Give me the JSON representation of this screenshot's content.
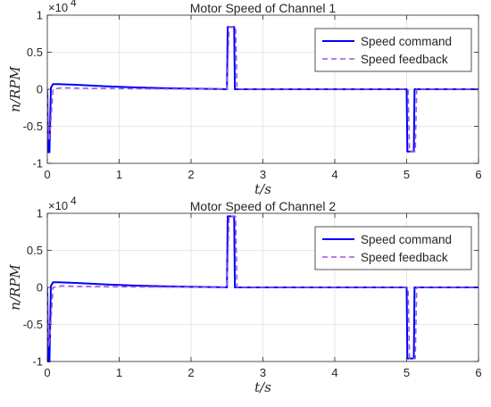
{
  "chart_data": [
    {
      "type": "line",
      "title": "Motor Speed of Channel 1",
      "xlabel": "t/s",
      "ylabel": "n/RPM",
      "xlim": [
        0,
        6
      ],
      "ylim": [
        -1,
        1
      ],
      "y_multiplier": "×10",
      "y_exponent": "4",
      "xticks": [
        0,
        1,
        2,
        3,
        4,
        5,
        6
      ],
      "xtick_labels": [
        "0",
        "1",
        "2",
        "3",
        "4",
        "5",
        "6"
      ],
      "yticks": [
        -1,
        -0.5,
        0,
        0.5,
        1
      ],
      "ytick_labels": [
        "-1",
        "-0.5",
        "0",
        "0.5",
        "1"
      ],
      "grid": true,
      "legend_position": "top-right",
      "series": [
        {
          "name": "Speed command",
          "color": "#0000ff",
          "style": "solid",
          "points": [
            [
              0,
              0
            ],
            [
              0.01,
              -0.85
            ],
            [
              0.03,
              -0.85
            ],
            [
              0.05,
              0.02
            ],
            [
              0.08,
              0.07
            ],
            [
              0.15,
              0.07
            ],
            [
              0.4,
              0.06
            ],
            [
              0.8,
              0.04
            ],
            [
              1.2,
              0.025
            ],
            [
              1.6,
              0.015
            ],
            [
              2.0,
              0.008
            ],
            [
              2.4,
              0.003
            ],
            [
              2.5,
              0
            ],
            [
              2.51,
              0.84
            ],
            [
              2.6,
              0.84
            ],
            [
              2.61,
              0
            ],
            [
              5.0,
              0
            ],
            [
              5.01,
              -0.84
            ],
            [
              5.1,
              -0.84
            ],
            [
              5.11,
              0
            ],
            [
              6,
              0
            ]
          ]
        },
        {
          "name": "Speed feedback",
          "color": "#9a59e0",
          "style": "dashed",
          "points": [
            [
              0,
              0
            ],
            [
              0.02,
              -0.7
            ],
            [
              0.04,
              -0.55
            ],
            [
              0.08,
              0
            ],
            [
              0.2,
              0.02
            ],
            [
              0.4,
              0.015
            ],
            [
              0.8,
              0.01
            ],
            [
              1.5,
              0.005
            ],
            [
              2.5,
              0
            ],
            [
              2.53,
              0.84
            ],
            [
              2.62,
              0.84
            ],
            [
              2.64,
              0
            ],
            [
              5.02,
              0
            ],
            [
              5.04,
              -0.84
            ],
            [
              5.12,
              -0.84
            ],
            [
              5.14,
              0
            ],
            [
              6,
              0
            ]
          ]
        }
      ]
    },
    {
      "type": "line",
      "title": "Motor Speed of Channel 2",
      "xlabel": "t/s",
      "ylabel": "n/RPM",
      "xlim": [
        0,
        6
      ],
      "ylim": [
        -1,
        1
      ],
      "y_multiplier": "×10",
      "y_exponent": "4",
      "xticks": [
        0,
        1,
        2,
        3,
        4,
        5,
        6
      ],
      "xtick_labels": [
        "0",
        "1",
        "2",
        "3",
        "4",
        "5",
        "6"
      ],
      "yticks": [
        -1,
        -0.5,
        0,
        0.5,
        1
      ],
      "ytick_labels": [
        "-1",
        "-0.5",
        "0",
        "0.5",
        "1"
      ],
      "grid": true,
      "legend_position": "top-right",
      "series": [
        {
          "name": "Speed command",
          "color": "#0000ff",
          "style": "solid",
          "points": [
            [
              0,
              0
            ],
            [
              0.01,
              -1
            ],
            [
              0.03,
              -1
            ],
            [
              0.05,
              0.02
            ],
            [
              0.08,
              0.07
            ],
            [
              0.15,
              0.07
            ],
            [
              0.4,
              0.06
            ],
            [
              0.8,
              0.04
            ],
            [
              1.2,
              0.025
            ],
            [
              1.6,
              0.015
            ],
            [
              2.0,
              0.008
            ],
            [
              2.4,
              0.003
            ],
            [
              2.5,
              0
            ],
            [
              2.51,
              0.96
            ],
            [
              2.6,
              0.96
            ],
            [
              2.61,
              0
            ],
            [
              5.0,
              0
            ],
            [
              5.01,
              -0.96
            ],
            [
              5.1,
              -0.96
            ],
            [
              5.11,
              0
            ],
            [
              6,
              0
            ]
          ]
        },
        {
          "name": "Speed feedback",
          "color": "#9a59e0",
          "style": "dashed",
          "points": [
            [
              0,
              0
            ],
            [
              0.02,
              -0.8
            ],
            [
              0.04,
              -0.6
            ],
            [
              0.08,
              0
            ],
            [
              0.2,
              0.02
            ],
            [
              0.4,
              0.015
            ],
            [
              0.8,
              0.01
            ],
            [
              1.5,
              0.005
            ],
            [
              2.5,
              0
            ],
            [
              2.53,
              0.96
            ],
            [
              2.62,
              0.96
            ],
            [
              2.64,
              0
            ],
            [
              5.02,
              0
            ],
            [
              5.04,
              -0.96
            ],
            [
              5.12,
              -0.96
            ],
            [
              5.14,
              0
            ],
            [
              6,
              0
            ]
          ]
        }
      ]
    }
  ]
}
